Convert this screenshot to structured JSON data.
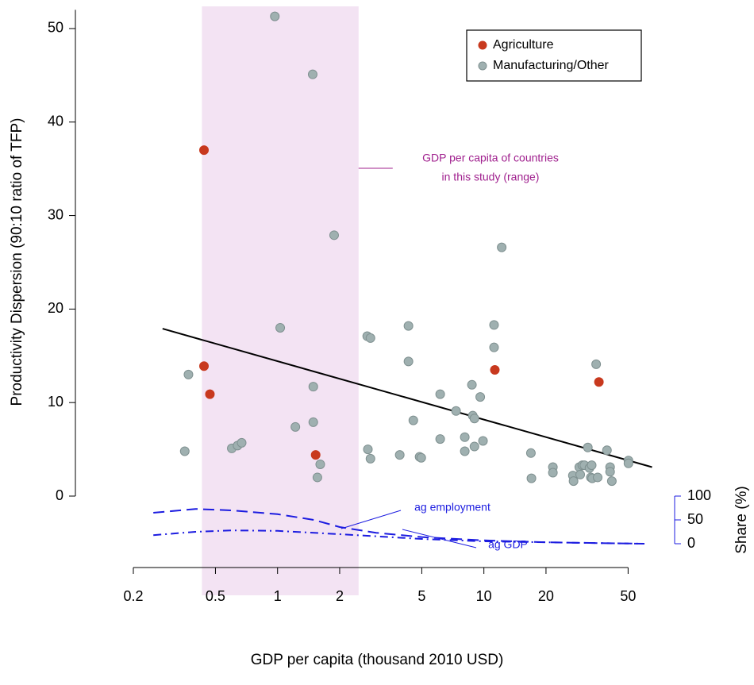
{
  "chart_data": {
    "type": "scatter",
    "xscale": "log",
    "xlabel": "GDP per capita (thousand 2010 USD)",
    "ylabel": "Productivity Dispersion (90:10 ratio of TFP)",
    "y2label": "Share (%)",
    "xlim": [
      0.2,
      65
    ],
    "xticks": [
      0.2,
      0.5,
      1,
      2,
      5,
      10,
      20,
      50
    ],
    "ylim": [
      0,
      52
    ],
    "yticks": [
      0,
      10,
      20,
      30,
      40,
      50
    ],
    "y2lim": [
      0,
      100
    ],
    "y2ticks": [
      0,
      50,
      100
    ],
    "y2color": "#1c1ce0",
    "legend": "top-right",
    "highlight": {
      "xrange": [
        0.43,
        2.47
      ],
      "color": "#f3e3f3",
      "label_color": "#a0208e",
      "label": [
        "GDP per capita of countries",
        "in this study (range)"
      ]
    },
    "series": [
      {
        "name": "Agriculture",
        "color": "#c8391e",
        "x": [
          0.44,
          0.44,
          0.47,
          1.53,
          11.3,
          36.1
        ],
        "values": [
          37.0,
          13.9,
          10.9,
          4.4,
          13.5,
          12.2
        ]
      },
      {
        "name": "Manufacturing/Other",
        "color": "#9fb0b0",
        "x": [
          0.355,
          0.37,
          0.6,
          0.64,
          0.67,
          0.97,
          1.03,
          1.22,
          1.48,
          1.49,
          1.49,
          1.56,
          1.61,
          1.88,
          2.72,
          2.82,
          2.74,
          2.82,
          3.91,
          4.31,
          4.31,
          4.55,
          4.88,
          4.97,
          6.14,
          6.14,
          7.33,
          8.08,
          8.08,
          8.75,
          8.83,
          9.0,
          9.0,
          9.6,
          9.9,
          11.2,
          11.2,
          12.2,
          16.9,
          17.0,
          21.6,
          21.6,
          27.0,
          27.2,
          29.0,
          29.3,
          30.0,
          30.7,
          31.9,
          32.5,
          33.3,
          33.0,
          33.5,
          35.0,
          35.6,
          39.5,
          40.9,
          40.9,
          41.7,
          50.2,
          50.2
        ],
        "values": [
          4.8,
          13.0,
          5.1,
          5.4,
          5.7,
          51.3,
          18.0,
          7.4,
          45.1,
          11.7,
          7.9,
          2.0,
          3.4,
          27.9,
          17.1,
          16.9,
          5.0,
          4.0,
          4.4,
          18.2,
          14.4,
          8.1,
          4.2,
          4.1,
          10.9,
          6.1,
          9.1,
          6.3,
          4.8,
          11.9,
          8.6,
          8.3,
          5.3,
          10.6,
          5.9,
          18.3,
          15.9,
          26.6,
          4.6,
          1.9,
          3.1,
          2.5,
          2.2,
          1.6,
          3.1,
          2.3,
          3.3,
          3.3,
          5.2,
          3.0,
          3.3,
          2.0,
          1.9,
          14.1,
          2.0,
          4.9,
          3.1,
          2.6,
          1.6,
          3.8,
          3.5
        ]
      }
    ],
    "fit": {
      "color": "#000000",
      "x": [
        0.277,
        65.3
      ],
      "values": [
        17.9,
        3.1
      ]
    },
    "share_series": [
      {
        "name": "ag employment",
        "style": "dashed",
        "axis": "y2",
        "color": "#1c1ce0",
        "x": [
          0.25,
          0.4,
          0.6,
          1,
          1.5,
          2,
          3,
          5,
          10,
          20,
          40,
          60
        ],
        "values": [
          65,
          73,
          70,
          62,
          50,
          35,
          23,
          14,
          7,
          3,
          1,
          0
        ]
      },
      {
        "name": "ag GDP",
        "style": "dashdot",
        "axis": "y2",
        "color": "#1c1ce0",
        "x": [
          0.25,
          0.4,
          0.6,
          1,
          2,
          5,
          10,
          20,
          40,
          60
        ],
        "values": [
          18,
          25,
          28,
          27,
          20,
          10,
          5,
          3,
          1,
          0
        ]
      }
    ]
  }
}
